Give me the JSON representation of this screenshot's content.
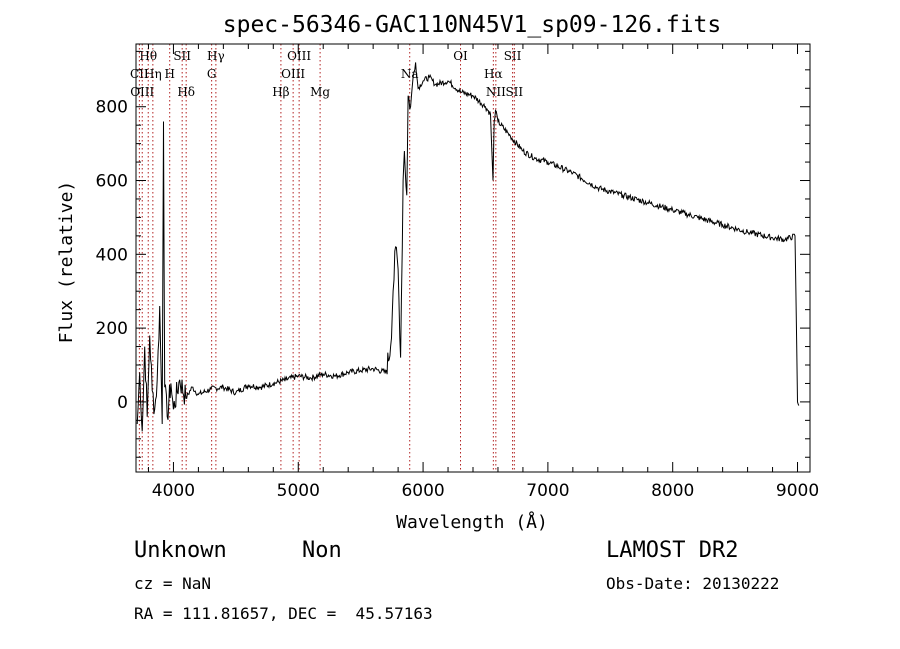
{
  "chart_data": {
    "type": "line",
    "title": "spec-56346-GAC110N45V1_sp09-126.fits",
    "xlabel": "Wavelength (Å)",
    "ylabel": "Flux (relative)",
    "xlim": [
      3700,
      9100
    ],
    "ylim": [
      -190,
      970
    ],
    "xticks": [
      4000,
      5000,
      6000,
      7000,
      8000,
      9000
    ],
    "yticks": [
      0,
      200,
      400,
      600,
      800
    ],
    "grid": false,
    "series": [
      {
        "color": "#000000",
        "x": [
          3710,
          3730,
          3750,
          3770,
          3790,
          3810,
          3830,
          3850,
          3870,
          3890,
          3910,
          3920,
          3930,
          3950,
          3980,
          4000,
          4050,
          4100,
          4150,
          4200,
          4300,
          4400,
          4500,
          4600,
          4700,
          4800,
          4900,
          5000,
          5100,
          5200,
          5300,
          5400,
          5500,
          5600,
          5700,
          5740,
          5760,
          5780,
          5800,
          5820,
          5840,
          5850,
          5870,
          5880,
          5900,
          5920,
          5940,
          5960,
          6000,
          6050,
          6100,
          6200,
          6300,
          6400,
          6500,
          6540,
          6560,
          6570,
          6580,
          6600,
          6700,
          6800,
          6900,
          7000,
          7200,
          7400,
          7600,
          7800,
          8000,
          8200,
          8400,
          8600,
          8800,
          8900,
          8980,
          9000,
          9010
        ],
        "y": [
          -60,
          80,
          -80,
          150,
          -40,
          180,
          30,
          -20,
          60,
          260,
          -60,
          760,
          40,
          -40,
          50,
          -20,
          60,
          10,
          40,
          20,
          35,
          40,
          25,
          45,
          40,
          50,
          60,
          70,
          65,
          75,
          70,
          80,
          85,
          90,
          80,
          150,
          300,
          420,
          360,
          120,
          600,
          680,
          560,
          830,
          800,
          880,
          920,
          850,
          870,
          880,
          860,
          870,
          840,
          830,
          800,
          780,
          600,
          760,
          790,
          760,
          720,
          680,
          660,
          650,
          620,
          580,
          560,
          540,
          520,
          500,
          480,
          460,
          445,
          440,
          450,
          0,
          -10
        ]
      }
    ],
    "line_marks": [
      {
        "label": "Hθ",
        "wavelength": 3798
      },
      {
        "label": "CII",
        "wavelength": 3727
      },
      {
        "label": "OIII",
        "wavelength": 3750
      },
      {
        "label": "Hη",
        "wavelength": 3835
      },
      {
        "label": "SII",
        "wavelength": 4070
      },
      {
        "label": "H",
        "wavelength": 3970
      },
      {
        "label": "Hδ",
        "wavelength": 4102
      },
      {
        "label": "Hγ",
        "wavelength": 4340
      },
      {
        "label": "G",
        "wavelength": 4306
      },
      {
        "label": "OIII",
        "wavelength": 5007
      },
      {
        "label": "OIII",
        "wavelength": 4959
      },
      {
        "label": "Hβ",
        "wavelength": 4861
      },
      {
        "label": "Mg",
        "wavelength": 5175
      },
      {
        "label": "Na",
        "wavelength": 5893
      },
      {
        "label": "OI",
        "wavelength": 6300
      },
      {
        "label": "Hα",
        "wavelength": 6563
      },
      {
        "label": "NII",
        "wavelength": 6583
      },
      {
        "label": "SII",
        "wavelength": 6717
      },
      {
        "label": "SII",
        "wavelength": 6731
      }
    ],
    "line_mark_color": "#b22222"
  },
  "info": {
    "object_class": "Unknown",
    "object_subclass": "Non",
    "survey": "LAMOST DR2",
    "redshift": "cz = NaN",
    "obs_date": "Obs-Date: 20130222",
    "coords": "RA = 111.81657, DEC =  45.57163"
  }
}
